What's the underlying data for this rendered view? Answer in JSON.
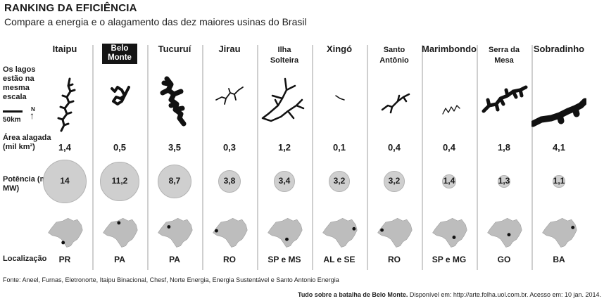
{
  "title": "RANKING DA EFICIÊNCIA",
  "subtitle": "Compare a energia e o alagamento das dez maiores usinas do Brasil",
  "row_labels": {
    "lakes": "Os lagos estão na mesma escala",
    "area": "Área alagada (mil km²)",
    "power": "Potência (mil MW)",
    "location": "Localização"
  },
  "scale": {
    "distance": "50km",
    "north": "N"
  },
  "chart_data": {
    "type": "table",
    "title": "RANKING DA EFICIÊNCIA",
    "subtitle": "Compare a energia e o alagamento das dez maiores usinas do Brasil",
    "columns": [
      {
        "name": "Itaipu",
        "area": "1,4",
        "area_value": 1.4,
        "power": "14",
        "power_value": 14,
        "loc": "PR",
        "highlight": false
      },
      {
        "name": "Belo Monte",
        "area": "0,5",
        "area_value": 0.5,
        "power": "11,2",
        "power_value": 11.2,
        "loc": "PA",
        "highlight": true
      },
      {
        "name": "Tucuruí",
        "area": "3,5",
        "area_value": 3.5,
        "power": "8,7",
        "power_value": 8.7,
        "loc": "PA",
        "highlight": false
      },
      {
        "name": "Jirau",
        "area": "0,3",
        "area_value": 0.3,
        "power": "3,8",
        "power_value": 3.8,
        "loc": "RO",
        "highlight": false
      },
      {
        "name": "Ilha Solteira",
        "area": "1,2",
        "area_value": 1.2,
        "power": "3,4",
        "power_value": 3.4,
        "loc": "SP e MS",
        "highlight": false
      },
      {
        "name": "Xingó",
        "area": "0,1",
        "area_value": 0.1,
        "power": "3,2",
        "power_value": 3.2,
        "loc": "AL e SE",
        "highlight": false
      },
      {
        "name": "Santo Antônio",
        "area": "0,4",
        "area_value": 0.4,
        "power": "3,2",
        "power_value": 3.2,
        "loc": "RO",
        "highlight": false
      },
      {
        "name": "Marimbondo",
        "area": "0,4",
        "area_value": 0.4,
        "power": "1,4",
        "power_value": 1.4,
        "loc": "SP e MG",
        "highlight": false
      },
      {
        "name": "Serra da Mesa",
        "area": "1,8",
        "area_value": 1.8,
        "power": "1,3",
        "power_value": 1.3,
        "loc": "GO",
        "highlight": false
      },
      {
        "name": "Sobradinho",
        "area": "4,1",
        "area_value": 4.1,
        "power": "1,1",
        "power_value": 1.1,
        "loc": "BA",
        "highlight": false
      }
    ]
  },
  "colors": {
    "bubble": "#cfcfcf",
    "lake": "#111111",
    "map": "#bdbdbd",
    "highlight_bg": "#151515"
  },
  "source": "Fonte: Aneel, Furnas, Eletronorte, Itaipu Binacional, Chesf, Norte Energia, Energia Sustentável e Santo Antonio Energia",
  "credit": {
    "title": "Tudo sobre a batalha de Belo Monte.",
    "rest": " Disponível em: http://arte.folha.uol.com.br. Acesso em: 10 jan. 2014."
  }
}
